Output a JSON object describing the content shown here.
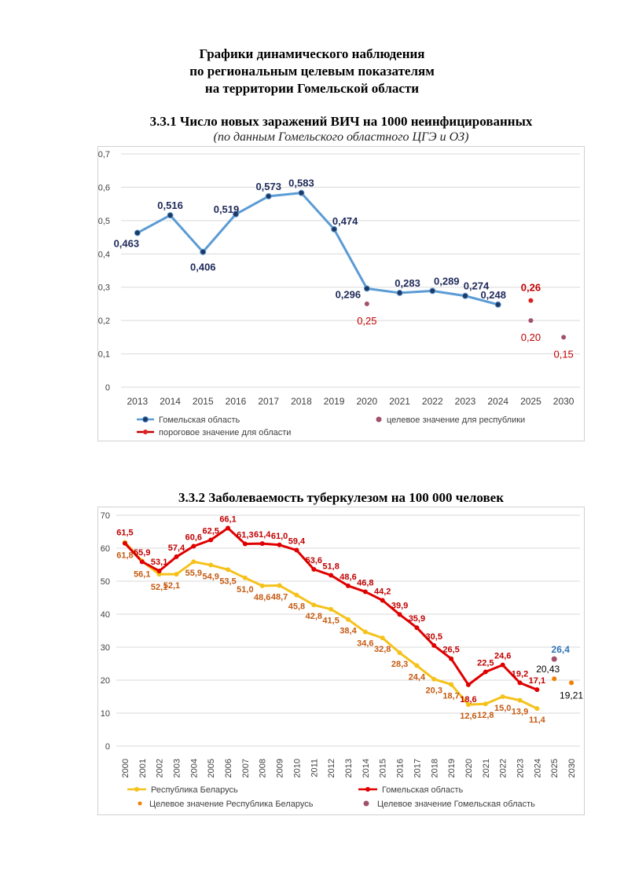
{
  "page": {
    "title_lines": [
      "Графики динамического наблюдения",
      "по региональным целевым показателям",
      "на территории Гомельской области"
    ]
  },
  "chart_data": [
    {
      "type": "line",
      "title": "3.3.1 Число новых заражений ВИЧ на 1000 неинфицированных",
      "subtitle": "(по данным Гомельского областного ЦГЭ и ОЗ)",
      "categories": [
        "2013",
        "2014",
        "2015",
        "2016",
        "2017",
        "2018",
        "2019",
        "2020",
        "2021",
        "2022",
        "2023",
        "2024",
        "2025",
        "2030"
      ],
      "ylim": [
        0,
        0.7
      ],
      "yticks": [
        "0",
        "0,1",
        "0,2",
        "0,3",
        "0,4",
        "0,5",
        "0,6",
        "0,7"
      ],
      "ytick_values": [
        0,
        0.1,
        0.2,
        0.3,
        0.4,
        0.5,
        0.6,
        0.7
      ],
      "grid": true,
      "legend_position": "bottom",
      "series": [
        {
          "name": "Гомельская область",
          "kind": "line",
          "color": "#5b9bd5",
          "marker_color": "#1f3864",
          "label_color": "#1f2a5a",
          "x": [
            "2013",
            "2014",
            "2015",
            "2016",
            "2017",
            "2018",
            "2019",
            "2020",
            "2021",
            "2022",
            "2023",
            "2024"
          ],
          "values": [
            0.463,
            0.516,
            0.406,
            0.519,
            0.573,
            0.583,
            0.474,
            0.296,
            0.283,
            0.289,
            0.274,
            0.248
          ],
          "labels": [
            "0,463",
            "0,516",
            "0,406",
            "0,519",
            "0,573",
            "0,583",
            "0,474",
            "0,296",
            "0,283",
            "0,289",
            "0,274",
            "0,248"
          ]
        },
        {
          "name": "целевое значение для республики",
          "kind": "marker",
          "color": "#a0526a",
          "label_color": "#c00000",
          "x": [
            "2020",
            "2025",
            "2030"
          ],
          "values": [
            0.25,
            0.2,
            0.15
          ],
          "labels": [
            "0,25",
            "0,20",
            "0,15"
          ]
        },
        {
          "name": "пороговое значение для области",
          "kind": "marker",
          "color": "#e02020",
          "label_color": "#c00000",
          "x": [
            "2025"
          ],
          "values": [
            0.26
          ],
          "labels": [
            "0,26"
          ]
        }
      ]
    },
    {
      "type": "line",
      "title": "3.3.2 Заболеваемость туберкулезом на 100 000 человек",
      "categories": [
        "2000",
        "2001",
        "2002",
        "2003",
        "2004",
        "2005",
        "2006",
        "2007",
        "2008",
        "2009",
        "2010",
        "2011",
        "2012",
        "2013",
        "2014",
        "2015",
        "2016",
        "2017",
        "2018",
        "2019",
        "2020",
        "2021",
        "2022",
        "2023",
        "2024",
        "2025",
        "2030"
      ],
      "ylim": [
        0,
        70
      ],
      "yticks": [
        "0",
        "10",
        "20",
        "30",
        "40",
        "50",
        "60",
        "70"
      ],
      "ytick_values": [
        0,
        10,
        20,
        30,
        40,
        50,
        60,
        70
      ],
      "grid": true,
      "legend_position": "bottom",
      "series": [
        {
          "name": "Республика Беларусь",
          "kind": "line",
          "color": "#f5c21b",
          "label_color": "#c55a11",
          "x": [
            "2000",
            "2001",
            "2002",
            "2003",
            "2004",
            "2005",
            "2006",
            "2007",
            "2008",
            "2009",
            "2010",
            "2011",
            "2012",
            "2013",
            "2014",
            "2015",
            "2016",
            "2017",
            "2018",
            "2019",
            "2020",
            "2021",
            "2022",
            "2023",
            "2024"
          ],
          "values": [
            61.8,
            56.1,
            52.1,
            52.1,
            55.9,
            54.9,
            53.5,
            51.0,
            48.6,
            48.7,
            45.8,
            42.8,
            41.5,
            38.4,
            34.6,
            32.8,
            28.3,
            24.4,
            20.3,
            18.7,
            12.6,
            12.8,
            15.0,
            13.9,
            11.4
          ],
          "labels": [
            "61,8",
            "56,1",
            "52,1",
            "52,1",
            "55,9",
            "54,9",
            "53,5",
            "51,0",
            "48,6",
            "48,7",
            "45,8",
            "42,8",
            "41,5",
            "38,4",
            "34,6",
            "32,8",
            "28,3",
            "24,4",
            "20,3",
            "18,7",
            "12,6",
            "12,8",
            "15,0",
            "13,9",
            "11,4"
          ]
        },
        {
          "name": "Гомельская область",
          "kind": "line",
          "color": "#e00000",
          "label_color": "#c00000",
          "x": [
            "2000",
            "2001",
            "2002",
            "2003",
            "2004",
            "2005",
            "2006",
            "2007",
            "2008",
            "2009",
            "2010",
            "2011",
            "2012",
            "2013",
            "2014",
            "2015",
            "2016",
            "2017",
            "2018",
            "2019",
            "2020",
            "2021",
            "2022",
            "2023",
            "2024"
          ],
          "values": [
            61.5,
            55.9,
            53.1,
            57.4,
            60.6,
            62.5,
            66.1,
            61.3,
            61.4,
            61.0,
            59.4,
            53.6,
            51.8,
            48.6,
            46.8,
            44.2,
            39.9,
            35.9,
            30.5,
            26.5,
            18.6,
            22.5,
            24.6,
            19.2,
            17.1
          ],
          "labels": [
            "61,5",
            "55,9",
            "53,1",
            "57,4",
            "60,6",
            "62,5",
            "66,1",
            "61,3",
            "61,4",
            "61,0",
            "59,4",
            "53,6",
            "51,8",
            "48,6",
            "46,8",
            "44,2",
            "39,9",
            "35,9",
            "30,5",
            "26,5",
            "18,6",
            "22,5",
            "24,6",
            "19,2",
            "17,1"
          ]
        },
        {
          "name": "Целевое значение Республика Беларусь",
          "kind": "marker",
          "color": "#f08000",
          "label_color": "#000000",
          "x": [
            "2025",
            "2030"
          ],
          "values": [
            20.43,
            19.21
          ],
          "labels": [
            "20,43",
            "19,21"
          ]
        },
        {
          "name": "Целевое значение Гомельская область",
          "kind": "marker",
          "color": "#a0526a",
          "label_color": "#2e75b6",
          "x": [
            "2025"
          ],
          "values": [
            26.4
          ],
          "labels": [
            "26,4"
          ]
        }
      ]
    }
  ]
}
